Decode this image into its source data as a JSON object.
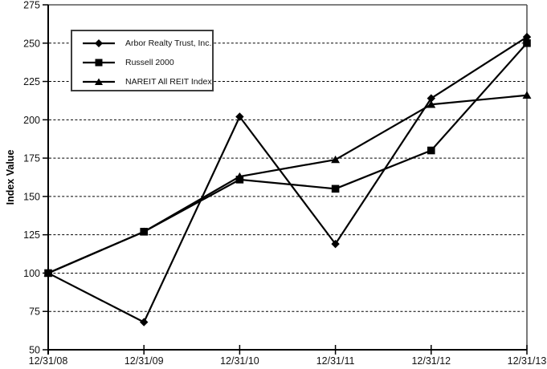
{
  "chart_data": {
    "type": "line",
    "title": "",
    "ylabel": "Index Value",
    "xlabel": "",
    "categories": [
      "12/31/08",
      "12/31/09",
      "12/31/10",
      "12/31/11",
      "12/31/12",
      "12/31/13"
    ],
    "yticks": [
      50,
      75,
      100,
      125,
      150,
      175,
      200,
      225,
      250,
      275
    ],
    "ylim": [
      50,
      275
    ],
    "grid": "horizontal-dashed",
    "legend_position": "top-left-inside",
    "series": [
      {
        "name": "Arbor Realty Trust, Inc.",
        "marker": "diamond",
        "color": "#000000",
        "values": [
          100,
          68,
          202,
          119,
          214,
          254
        ]
      },
      {
        "name": "Russell 2000",
        "marker": "square",
        "color": "#000000",
        "values": [
          100,
          127,
          161,
          155,
          180,
          250
        ]
      },
      {
        "name": "NAREIT All REIT Index",
        "marker": "triangle",
        "color": "#000000",
        "values": [
          100,
          127,
          163,
          174,
          210,
          216
        ]
      }
    ]
  },
  "colors": {
    "background": "#ffffff",
    "line": "#000000",
    "grid": "#000000",
    "axis": "#000000",
    "top_border": "#808080",
    "right_border": "#4d4d4d",
    "legend_border": "#3d3d3d",
    "text": "#111111"
  }
}
